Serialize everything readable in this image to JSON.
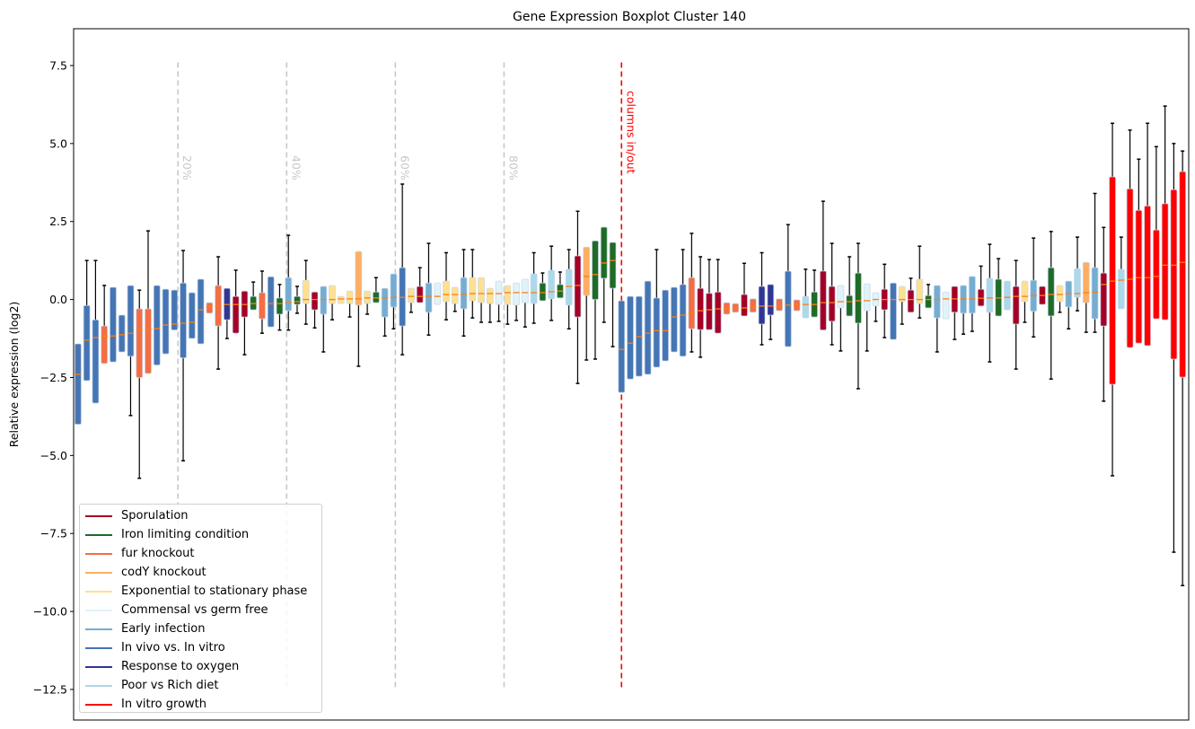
{
  "chart_data": {
    "type": "boxplot",
    "title": "Gene Expression Boxplot Cluster 140",
    "xlabel": "",
    "ylabel": "Relative expression (log2)",
    "xlim": [
      0.5,
      127.7
    ],
    "ylim": [
      -13.48,
      8.68
    ],
    "yticks": [
      7.5,
      5.0,
      2.5,
      0.0,
      -2.5,
      -5.0,
      -7.5,
      -10.0,
      -12.5
    ],
    "ytick_labels": [
      "7.5",
      "5.0",
      "2.5",
      "0.0",
      "−2.5",
      "−5.0",
      "−7.5",
      "−10.0",
      "−12.5"
    ],
    "grid": false,
    "legend_position": "lower-left",
    "median_color": "#ff7f0e",
    "groups": [
      {
        "name": "Sporulation",
        "color": "#a50026"
      },
      {
        "name": "Iron limiting condition",
        "color": "#1f6b25"
      },
      {
        "name": "fur knockout",
        "color": "#f46d43"
      },
      {
        "name": "codY knockout",
        "color": "#fdae61"
      },
      {
        "name": "Exponential to stationary phase",
        "color": "#fee090"
      },
      {
        "name": "Commensal vs germ free",
        "color": "#e0f3f8"
      },
      {
        "name": "Early infection",
        "color": "#74add1"
      },
      {
        "name": "In vivo vs. In vitro",
        "color": "#4575b4"
      },
      {
        "name": "Response to oxygen",
        "color": "#313695"
      },
      {
        "name": "Poor vs Rich diet",
        "color": "#abd9e9"
      },
      {
        "name": "In vitro growth",
        "color": "#ff0000"
      }
    ],
    "box_fields": [
      "group",
      "whisker_low",
      "q1",
      "median",
      "q3",
      "whisker_high"
    ],
    "boxes": [
      [
        7,
        -4.0,
        -4.0,
        -2.4,
        -1.42,
        -1.42
      ],
      [
        7,
        -2.6,
        -2.6,
        -1.3,
        -0.19,
        1.25
      ],
      [
        7,
        -3.32,
        -3.32,
        -1.22,
        -0.65,
        1.25
      ],
      [
        2,
        -2.05,
        -2.05,
        -1.17,
        -0.85,
        0.45
      ],
      [
        7,
        -2.0,
        -2.0,
        -1.17,
        0.39,
        0.39
      ],
      [
        7,
        -1.68,
        -1.68,
        -1.13,
        -0.5,
        -0.5
      ],
      [
        7,
        -3.72,
        -1.82,
        -1.08,
        0.45,
        0.45
      ],
      [
        2,
        -5.73,
        -2.5,
        -0.97,
        -0.3,
        0.3
      ],
      [
        2,
        -2.37,
        -2.37,
        -0.97,
        -0.3,
        2.2
      ],
      [
        7,
        -2.1,
        -2.1,
        -0.93,
        0.45,
        0.45
      ],
      [
        7,
        -1.74,
        -1.74,
        -0.82,
        0.33,
        0.33
      ],
      [
        7,
        -0.98,
        -0.98,
        -0.79,
        0.3,
        0.3
      ],
      [
        7,
        -5.17,
        -1.87,
        -0.76,
        0.53,
        1.57
      ],
      [
        7,
        -1.25,
        -1.25,
        -0.73,
        0.22,
        0.22
      ],
      [
        7,
        -1.42,
        -1.42,
        -0.33,
        0.65,
        0.65
      ],
      [
        2,
        -0.44,
        -0.44,
        -0.24,
        -0.1,
        -0.1
      ],
      [
        2,
        -2.23,
        -0.85,
        -0.21,
        0.45,
        1.37
      ],
      [
        8,
        -1.25,
        -0.65,
        -0.16,
        0.36,
        0.36
      ],
      [
        0,
        -1.08,
        -1.08,
        -0.16,
        0.1,
        0.94
      ],
      [
        0,
        -1.77,
        -0.56,
        -0.16,
        0.27,
        0.27
      ],
      [
        1,
        -0.33,
        -0.33,
        -0.13,
        0.1,
        0.56
      ],
      [
        2,
        -1.08,
        -0.62,
        -0.13,
        0.22,
        0.91
      ],
      [
        7,
        -0.88,
        -0.88,
        -0.13,
        0.73,
        0.73
      ],
      [
        1,
        -0.98,
        -0.47,
        -0.13,
        0.05,
        0.48
      ],
      [
        6,
        -0.98,
        -0.36,
        -0.1,
        0.7,
        2.06
      ],
      [
        1,
        -0.44,
        -0.16,
        -0.07,
        0.1,
        0.42
      ],
      [
        4,
        -0.79,
        -0.13,
        0.0,
        0.62,
        1.25
      ],
      [
        0,
        -0.91,
        -0.33,
        0.0,
        0.24,
        0.24
      ],
      [
        6,
        -1.68,
        -0.47,
        0.0,
        0.42,
        0.42
      ],
      [
        4,
        -0.65,
        -0.13,
        0.0,
        0.45,
        0.45
      ],
      [
        4,
        -0.13,
        -0.13,
        0.02,
        0.1,
        0.1
      ],
      [
        4,
        -0.56,
        -0.13,
        0.02,
        0.27,
        0.27
      ],
      [
        3,
        -2.14,
        -0.18,
        0.02,
        1.54,
        1.54
      ],
      [
        4,
        -0.47,
        -0.13,
        0.05,
        0.27,
        0.27
      ],
      [
        1,
        -0.1,
        -0.1,
        0.05,
        0.24,
        0.7
      ],
      [
        6,
        -1.17,
        -0.56,
        0.05,
        0.36,
        0.36
      ],
      [
        6,
        -0.94,
        -0.24,
        0.07,
        0.82,
        0.82
      ],
      [
        7,
        -1.77,
        -0.85,
        0.07,
        1.02,
        3.7
      ],
      [
        4,
        -0.41,
        -0.1,
        0.1,
        0.36,
        0.36
      ],
      [
        0,
        -0.1,
        -0.1,
        0.1,
        0.42,
        1.02
      ],
      [
        6,
        -1.14,
        -0.41,
        0.1,
        0.53,
        1.8
      ],
      [
        5,
        -0.16,
        -0.16,
        0.1,
        0.53,
        0.53
      ],
      [
        4,
        -0.65,
        -0.07,
        0.16,
        0.59,
        1.5
      ],
      [
        4,
        -0.38,
        -0.13,
        0.16,
        0.39,
        0.39
      ],
      [
        6,
        -1.17,
        -0.3,
        0.16,
        0.7,
        1.6
      ],
      [
        4,
        -0.59,
        -0.04,
        0.19,
        0.7,
        1.6
      ],
      [
        4,
        -0.73,
        -0.1,
        0.19,
        0.7,
        0.7
      ],
      [
        4,
        -0.73,
        -0.13,
        0.19,
        0.36,
        0.36
      ],
      [
        5,
        -0.7,
        -0.16,
        0.19,
        0.59,
        0.59
      ],
      [
        4,
        -0.79,
        -0.16,
        0.22,
        0.45,
        0.45
      ],
      [
        5,
        -0.67,
        -0.18,
        0.22,
        0.53,
        0.53
      ],
      [
        5,
        -0.88,
        -0.1,
        0.22,
        0.65,
        0.65
      ],
      [
        9,
        -0.76,
        -0.13,
        0.22,
        0.82,
        1.5
      ],
      [
        1,
        -0.04,
        -0.04,
        0.22,
        0.53,
        0.85
      ],
      [
        9,
        -0.67,
        0.02,
        0.25,
        0.94,
        1.71
      ],
      [
        1,
        0.05,
        0.05,
        0.27,
        0.48,
        0.88
      ],
      [
        9,
        -0.94,
        -0.18,
        0.42,
        0.97,
        1.6
      ],
      [
        0,
        -2.69,
        -0.56,
        0.45,
        1.4,
        2.83
      ],
      [
        3,
        -1.94,
        0.13,
        0.74,
        1.68,
        1.68
      ],
      [
        1,
        -1.91,
        0.0,
        0.8,
        1.88,
        1.88
      ],
      [
        1,
        -0.73,
        0.68,
        1.17,
        2.32,
        2.32
      ],
      [
        1,
        -1.51,
        0.36,
        1.25,
        1.83,
        1.83
      ],
      [
        7,
        -2.98,
        -2.98,
        -1.6,
        -0.04,
        -0.04
      ],
      [
        7,
        -2.55,
        -2.55,
        -1.4,
        0.1,
        0.1
      ],
      [
        7,
        -2.46,
        -2.46,
        -1.19,
        0.1,
        0.1
      ],
      [
        7,
        -2.4,
        -2.4,
        -1.08,
        0.59,
        0.59
      ],
      [
        7,
        -2.17,
        -2.17,
        -1.0,
        0.05,
        1.6
      ],
      [
        7,
        -1.97,
        -1.97,
        -1.0,
        0.3,
        0.3
      ],
      [
        7,
        -1.68,
        -1.68,
        -0.56,
        0.39,
        0.39
      ],
      [
        7,
        -1.82,
        -1.82,
        -0.5,
        0.48,
        1.6
      ],
      [
        2,
        -1.68,
        -0.94,
        -0.44,
        0.7,
        2.12
      ],
      [
        0,
        -1.85,
        -0.97,
        -0.36,
        0.36,
        1.37
      ],
      [
        0,
        -0.97,
        -0.97,
        -0.33,
        0.2,
        1.28
      ],
      [
        0,
        -1.08,
        -1.08,
        -0.3,
        0.24,
        1.28
      ],
      [
        2,
        -0.47,
        -0.47,
        -0.27,
        -0.1,
        -0.1
      ],
      [
        2,
        -0.41,
        -0.41,
        -0.27,
        -0.13,
        -0.13
      ],
      [
        0,
        -0.53,
        -0.53,
        -0.27,
        0.16,
        1.16
      ],
      [
        2,
        -0.41,
        -0.41,
        -0.24,
        0.02,
        0.02
      ],
      [
        8,
        -1.45,
        -0.79,
        -0.21,
        0.42,
        1.5
      ],
      [
        8,
        -1.28,
        -0.5,
        -0.21,
        0.48,
        0.48
      ],
      [
        2,
        -0.36,
        -0.36,
        -0.21,
        0.02,
        0.02
      ],
      [
        7,
        -1.51,
        -1.51,
        -0.18,
        0.91,
        2.4
      ],
      [
        2,
        -0.36,
        -0.36,
        -0.18,
        -0.01,
        -0.01
      ],
      [
        9,
        -0.59,
        -0.59,
        -0.16,
        0.1,
        0.97
      ],
      [
        1,
        -0.56,
        -0.56,
        -0.16,
        0.24,
        0.94
      ],
      [
        0,
        -0.98,
        -0.98,
        -0.1,
        0.91,
        3.15
      ],
      [
        0,
        -1.45,
        -0.7,
        -0.1,
        0.42,
        1.8
      ],
      [
        5,
        -1.65,
        -0.27,
        -0.07,
        0.45,
        0.45
      ],
      [
        1,
        -0.53,
        -0.53,
        -0.07,
        0.13,
        1.37
      ],
      [
        1,
        -2.86,
        -0.76,
        -0.04,
        0.85,
        1.8
      ],
      [
        5,
        -1.65,
        -0.36,
        -0.04,
        0.5,
        0.5
      ],
      [
        5,
        -0.7,
        -0.21,
        0.0,
        0.22,
        0.22
      ],
      [
        0,
        -1.22,
        -0.33,
        0.0,
        0.33,
        1.13
      ],
      [
        7,
        -1.28,
        -1.28,
        0.0,
        0.53,
        0.53
      ],
      [
        4,
        -0.79,
        -0.07,
        0.0,
        0.42,
        0.42
      ],
      [
        0,
        -0.41,
        -0.41,
        0.0,
        0.3,
        0.68
      ],
      [
        4,
        -0.59,
        -0.13,
        0.0,
        0.65,
        1.71
      ],
      [
        1,
        -0.27,
        -0.27,
        0.0,
        0.13,
        0.48
      ],
      [
        6,
        -1.68,
        -0.59,
        0.0,
        0.45,
        0.45
      ],
      [
        5,
        -0.62,
        -0.62,
        0.02,
        0.24,
        0.24
      ],
      [
        0,
        -1.28,
        -0.41,
        0.02,
        0.42,
        0.42
      ],
      [
        6,
        -1.11,
        -0.44,
        0.02,
        0.45,
        0.45
      ],
      [
        6,
        -1.02,
        -0.44,
        0.02,
        0.74,
        0.74
      ],
      [
        0,
        -0.21,
        -0.21,
        0.04,
        0.33,
        1.07
      ],
      [
        9,
        -2.0,
        -0.41,
        0.05,
        0.68,
        1.77
      ],
      [
        1,
        -0.53,
        -0.53,
        0.05,
        0.65,
        1.31
      ],
      [
        9,
        -0.33,
        -0.33,
        0.07,
        0.59,
        0.59
      ],
      [
        0,
        -2.23,
        -0.79,
        0.1,
        0.42,
        1.25
      ],
      [
        4,
        -0.73,
        -0.07,
        0.1,
        0.59,
        0.59
      ],
      [
        6,
        -1.2,
        -0.38,
        0.13,
        0.62,
        1.97
      ],
      [
        0,
        -0.16,
        -0.16,
        0.13,
        0.42,
        0.42
      ],
      [
        1,
        -2.55,
        -0.53,
        0.16,
        1.02,
        2.18
      ],
      [
        4,
        -0.41,
        -0.07,
        0.16,
        0.45,
        0.45
      ],
      [
        6,
        -0.94,
        -0.24,
        0.19,
        0.59,
        0.59
      ],
      [
        9,
        -0.36,
        0.07,
        0.19,
        0.99,
        2.0
      ],
      [
        3,
        -1.05,
        -0.1,
        0.22,
        1.19,
        1.19
      ],
      [
        6,
        -1.05,
        -0.62,
        0.24,
        1.02,
        3.4
      ],
      [
        0,
        -3.26,
        -0.85,
        0.48,
        0.85,
        2.31
      ],
      [
        10,
        -5.65,
        -2.72,
        0.59,
        3.93,
        5.65
      ],
      [
        9,
        -0.3,
        -0.3,
        0.62,
        0.97,
        2.0
      ],
      [
        10,
        -1.54,
        -1.54,
        0.65,
        3.55,
        5.43
      ],
      [
        10,
        -1.4,
        -1.4,
        0.7,
        2.86,
        4.5
      ],
      [
        10,
        -1.48,
        -1.48,
        0.7,
        3.0,
        5.65
      ],
      [
        10,
        -0.62,
        -0.62,
        0.74,
        2.23,
        4.9
      ],
      [
        10,
        -0.65,
        -0.65,
        1.1,
        3.07,
        6.2
      ],
      [
        10,
        -8.1,
        -1.91,
        1.1,
        3.52,
        5.0
      ],
      [
        10,
        -9.17,
        -2.49,
        1.19,
        4.1,
        4.76
      ]
    ],
    "reference_lines": [
      {
        "x": 12.4,
        "label": "20%",
        "color": "#c8c8c8"
      },
      {
        "x": 24.8,
        "label": "40%",
        "color": "#c8c8c8"
      },
      {
        "x": 37.2,
        "label": "60%",
        "color": "#c8c8c8"
      },
      {
        "x": 49.6,
        "label": "80%",
        "color": "#c8c8c8"
      },
      {
        "x": 63,
        "label": "columns in/out",
        "color": "#ff0000"
      }
    ],
    "reference_line_range": [
      -12.5,
      7.6
    ]
  }
}
